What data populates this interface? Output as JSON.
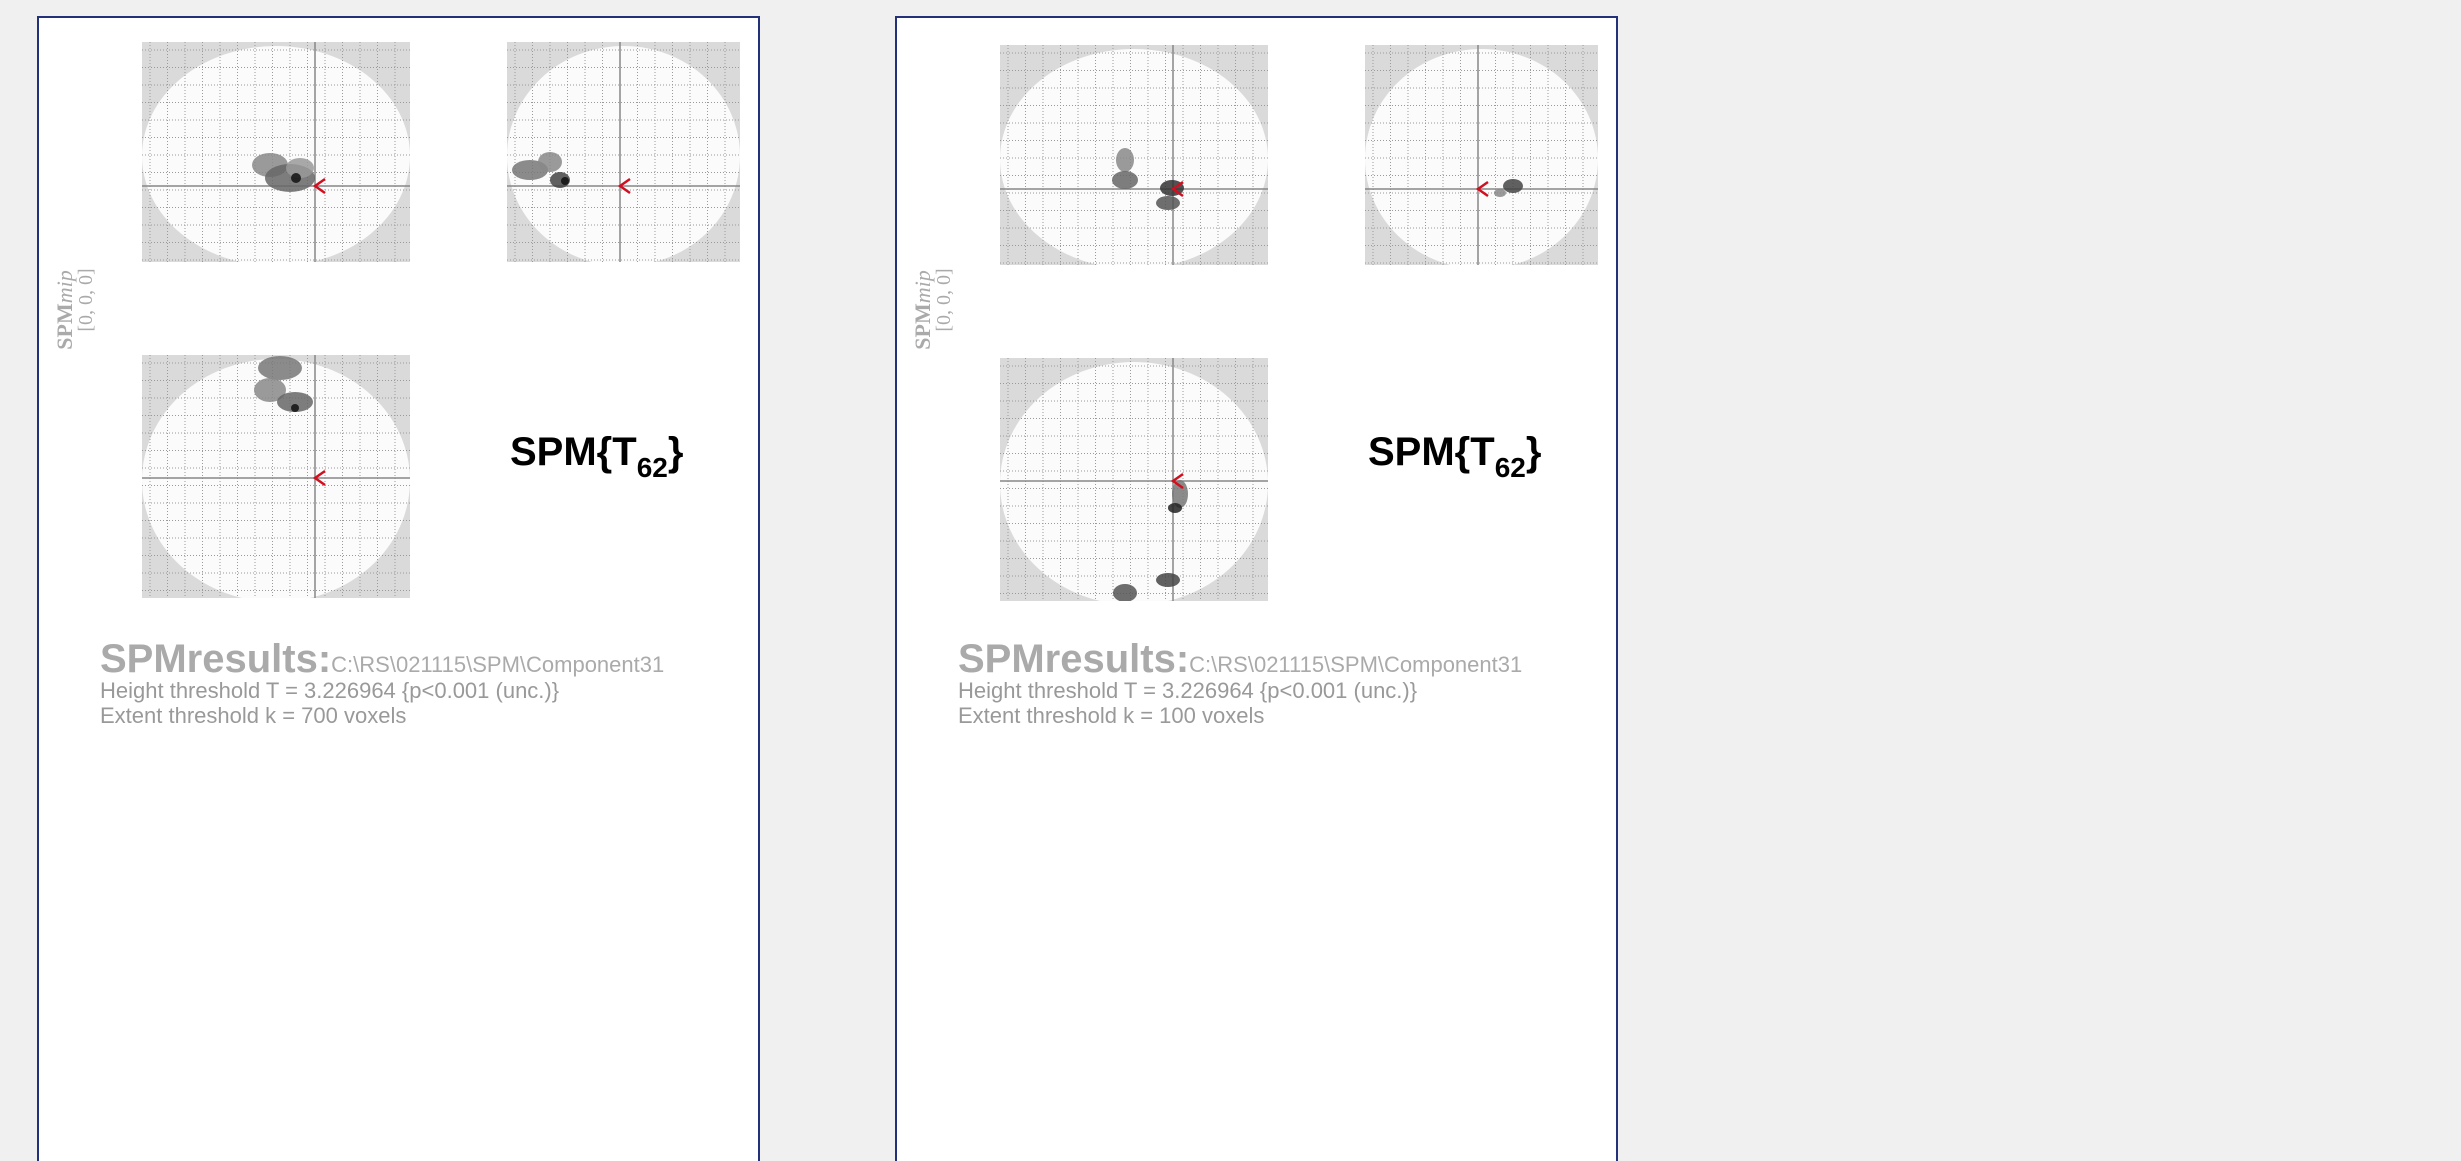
{
  "panels": [
    {
      "mip_label": {
        "bold": "SPM",
        "italic": "mip"
      },
      "coords": "[0, 0, 0]",
      "stat": {
        "main": "SPM{T",
        "sub": "62",
        "close": "}"
      },
      "results_label": "SPMresults:",
      "path": "C:\\RS\\021115\\SPM\\Component31",
      "height": "Height threshold T = 3.226964  {p<0.001 (unc.)}",
      "extent": "Extent threshold k = 700 voxels"
    },
    {
      "mip_label": {
        "bold": "SPM",
        "italic": "mip"
      },
      "coords": "[0, 0, 0]",
      "stat": {
        "main": "SPM{T",
        "sub": "62",
        "close": "}"
      },
      "results_label": "SPMresults:",
      "path": "C:\\RS\\021115\\SPM\\Component31",
      "height": "Height threshold T = 3.226964  {p<0.001 (unc.)}",
      "extent": "Extent threshold k = 100 voxels"
    }
  ]
}
